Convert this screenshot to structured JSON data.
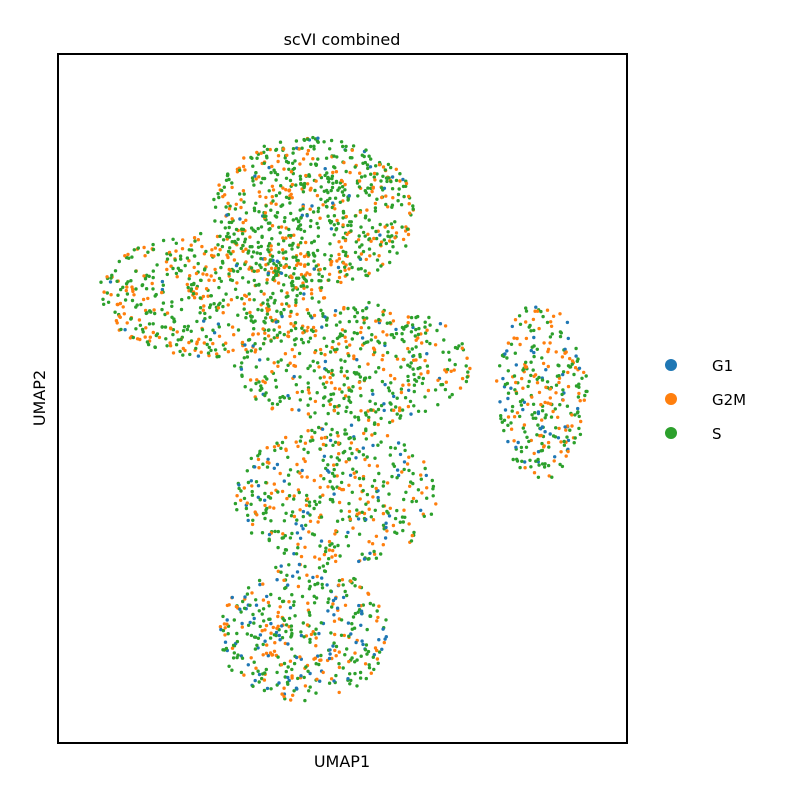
{
  "chart_data": {
    "type": "scatter",
    "title": "scVI combined",
    "xlabel": "UMAP1",
    "ylabel": "UMAP2",
    "xticks": [],
    "yticks": [],
    "xlim": [
      0,
      100
    ],
    "ylim": [
      0,
      100
    ],
    "grid": false,
    "legend_position": "right",
    "series": [
      {
        "name": "G1",
        "color": "#1f77b4",
        "approx_count": 300
      },
      {
        "name": "G2M",
        "color": "#ff7f0e",
        "approx_count": 900
      },
      {
        "name": "S",
        "color": "#2ca02c",
        "approx_count": 1800
      }
    ],
    "point_regions": [
      {
        "cx": 27,
        "cy": 65,
        "rx": 20,
        "ry": 9,
        "n": 520,
        "w": [
          0.03,
          0.4,
          0.57
        ]
      },
      {
        "cx": 45,
        "cy": 77,
        "rx": 18,
        "ry": 11,
        "n": 700,
        "w": [
          0.03,
          0.33,
          0.64
        ]
      },
      {
        "cx": 52,
        "cy": 55,
        "rx": 21,
        "ry": 9,
        "n": 480,
        "w": [
          0.08,
          0.32,
          0.6
        ]
      },
      {
        "cx": 85,
        "cy": 51,
        "rx": 8,
        "ry": 13,
        "n": 300,
        "w": [
          0.15,
          0.38,
          0.47
        ]
      },
      {
        "cx": 49,
        "cy": 36,
        "rx": 18,
        "ry": 10,
        "n": 440,
        "w": [
          0.1,
          0.3,
          0.6
        ]
      },
      {
        "cx": 43,
        "cy": 16,
        "rx": 15,
        "ry": 10,
        "n": 420,
        "w": [
          0.22,
          0.3,
          0.48
        ]
      }
    ]
  }
}
